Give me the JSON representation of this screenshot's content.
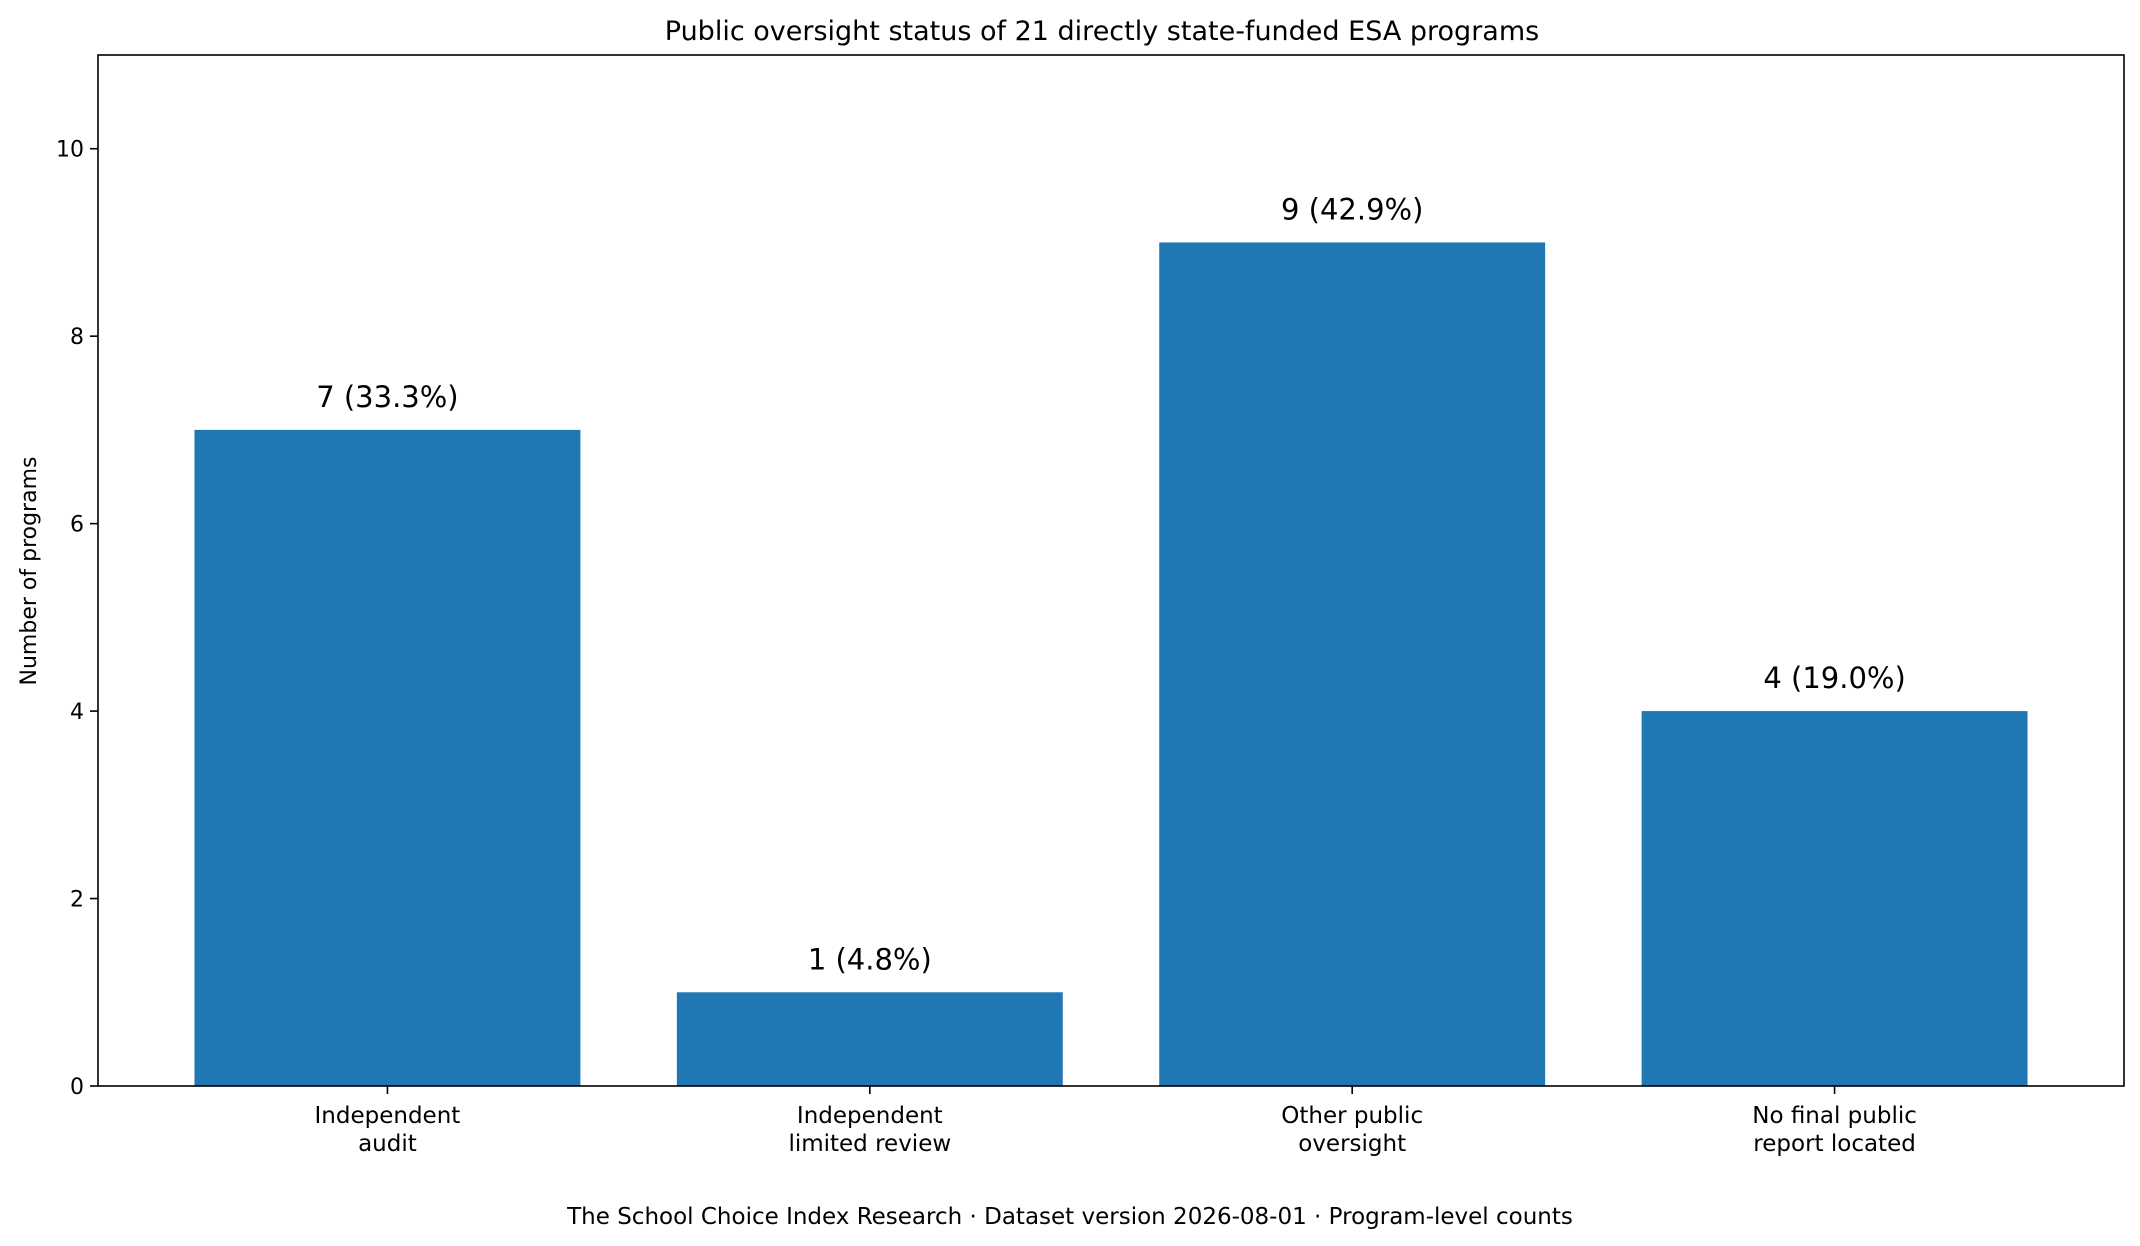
{
  "chart_data": {
    "type": "bar",
    "title": "Public oversight status of 21 directly state-funded ESA programs",
    "xlabel": "",
    "ylabel": "Number of programs",
    "categories": [
      [
        "Independent",
        "audit"
      ],
      [
        "Independent",
        "limited review"
      ],
      [
        "Other public",
        "oversight"
      ],
      [
        "No final public",
        "report located"
      ]
    ],
    "values": [
      7,
      1,
      9,
      4
    ],
    "bar_labels": [
      "7 (33.3%)",
      "1 (4.8%)",
      "9 (42.9%)",
      "4 (19.0%)"
    ],
    "ylim": [
      0,
      11
    ],
    "yticks": [
      0,
      2,
      4,
      6,
      8,
      10
    ],
    "grid": false,
    "legend": "none",
    "bar_color": "#1f77b4",
    "footer": "The School Choice Index Research · Dataset version 2026-08-01 · Program-level counts"
  }
}
